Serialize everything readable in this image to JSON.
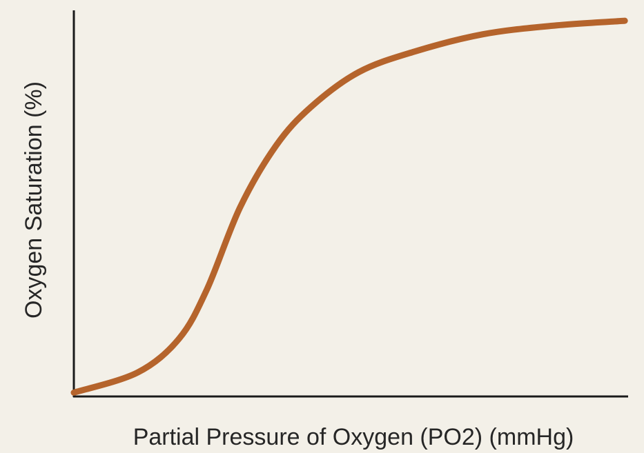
{
  "chart_data": {
    "type": "line",
    "x_label": "Partial Pressure of Oxygen (PO2) (mmHg)",
    "y_label": "Oxygen Saturation (%)",
    "x": [
      0,
      11.5,
      19,
      24,
      30,
      36.5,
      42.8,
      51.4,
      61.4,
      73.8,
      86.3,
      99.4
    ],
    "series": [
      {
        "color": "#b5642c",
        "values": [
          1,
          6.2,
          15,
          27.7,
          49,
          65,
          75,
          84,
          89.3,
          93.8,
          96,
          97.3
        ]
      }
    ],
    "xlim": [
      0,
      100
    ],
    "ylim": [
      0,
      100
    ],
    "grid": false
  }
}
